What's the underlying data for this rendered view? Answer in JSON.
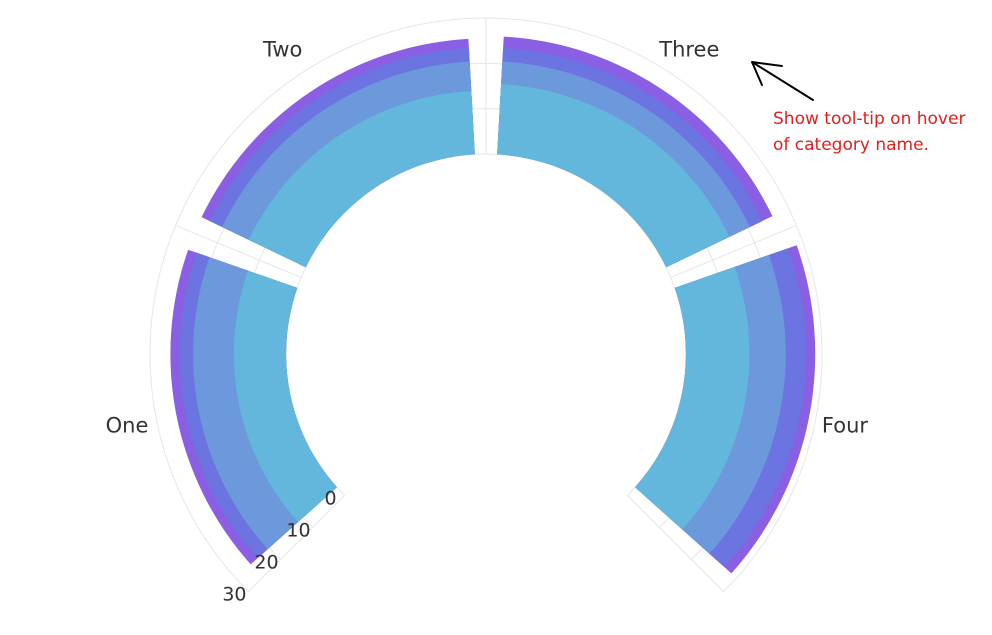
{
  "annotation": {
    "lines": [
      "Show tool-tip on hover",
      "of category name."
    ],
    "color": "#e02020",
    "arrow_color": "#000000"
  },
  "chart_data": {
    "type": "radial-bar",
    "categories": [
      "One",
      "Two",
      "Three",
      "Four"
    ],
    "radial_ticks": [
      "0",
      "10",
      "20",
      "30"
    ],
    "radial_tick_values": [
      0,
      10,
      20,
      30
    ],
    "series": [
      {
        "values": [
          25.5,
          25.5,
          26,
          28.5
        ],
        "color": "#8b5fe3"
      },
      {
        "values": [
          23.5,
          23.5,
          23.5,
          26.5
        ],
        "color": "#6b74e1"
      },
      {
        "values": [
          20.5,
          20.5,
          20.5,
          22
        ],
        "color": "#6c98dc"
      },
      {
        "values": [
          11.5,
          14,
          15.5,
          14
        ],
        "color": "#63b6dc"
      }
    ],
    "grid_color": "#e6e6e6",
    "grid": true
  }
}
